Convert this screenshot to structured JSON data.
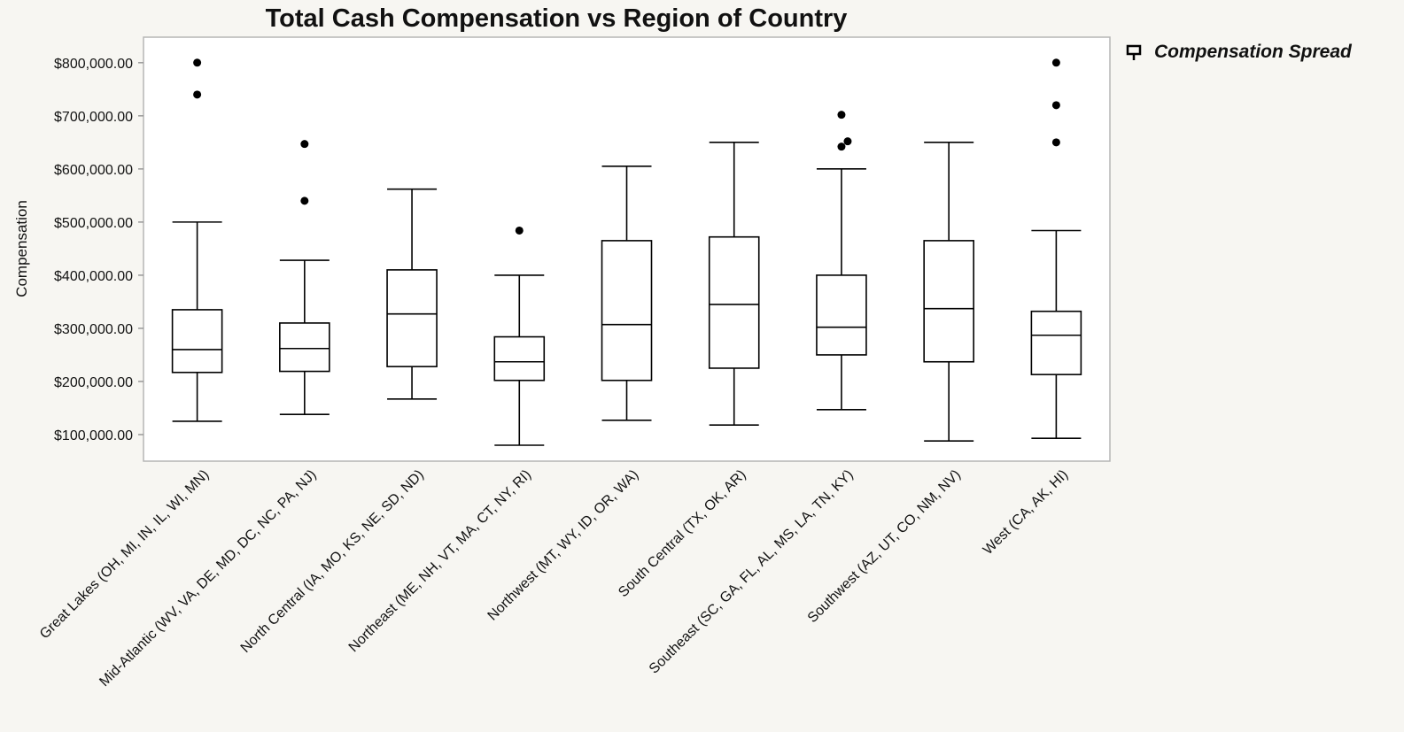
{
  "chart_data": {
    "type": "box",
    "title": "Total Cash Compensation vs Region of Country",
    "y_label": "Compensation",
    "legend": "Compensation Spread",
    "color": "#000000",
    "categories": [
      "Great Lakes (OH, MI, IN, IL, WI, MN)",
      "Mid-Atlantic (WV, VA, DE, MD, DC, NC, PA, NJ)",
      "North Central (IA, MO, KS, NE, SD, ND)",
      "Northeast (ME, NH, VT, MA, CT, NY, RI)",
      "Northwest (MT, WY, ID, OR, WA)",
      "South Central (TX, OK, AR)",
      "Southeast (SC, GA, FL, AL, MS, LA, TN, KY)",
      "Southwest (AZ, UT, CO, NM, NV)",
      "West (CA, AK, HI)"
    ],
    "boxes": [
      {
        "min": 125000,
        "q1": 217000,
        "median": 260000,
        "q3": 335000,
        "max": 500000,
        "outliers": [
          800000,
          740000
        ]
      },
      {
        "min": 138000,
        "q1": 219000,
        "median": 262000,
        "q3": 310000,
        "max": 428000,
        "outliers": [
          647000,
          540000
        ]
      },
      {
        "min": 167000,
        "q1": 228000,
        "median": 327000,
        "q3": 410000,
        "max": 562000,
        "outliers": []
      },
      {
        "min": 80000,
        "q1": 202000,
        "median": 237000,
        "q3": 284000,
        "max": 400000,
        "outliers": [
          484000
        ]
      },
      {
        "min": 127000,
        "q1": 202000,
        "median": 307000,
        "q3": 465000,
        "max": 605000,
        "outliers": []
      },
      {
        "min": 118000,
        "q1": 225000,
        "median": 345000,
        "q3": 472000,
        "max": 650000,
        "outliers": []
      },
      {
        "min": 147000,
        "q1": 250000,
        "median": 302000,
        "q3": 400000,
        "max": 600000,
        "outliers": [
          702000,
          642000,
          652000
        ]
      },
      {
        "min": 88000,
        "q1": 237000,
        "median": 337000,
        "q3": 465000,
        "max": 650000,
        "outliers": []
      },
      {
        "min": 93000,
        "q1": 213000,
        "median": 287000,
        "q3": 332000,
        "max": 484000,
        "outliers": [
          800000,
          720000,
          650000
        ]
      }
    ],
    "ylim": [
      50000,
      848000
    ],
    "yticks": [
      {
        "value": 100000,
        "label": "$100,000.00"
      },
      {
        "value": 200000,
        "label": "$200,000.00"
      },
      {
        "value": 300000,
        "label": "$300,000.00"
      },
      {
        "value": 400000,
        "label": "$400,000.00"
      },
      {
        "value": 500000,
        "label": "$500,000.00"
      },
      {
        "value": 600000,
        "label": "$600,000.00"
      },
      {
        "value": 700000,
        "label": "$700,000.00"
      },
      {
        "value": 800000,
        "label": "$800,000.00"
      }
    ]
  }
}
